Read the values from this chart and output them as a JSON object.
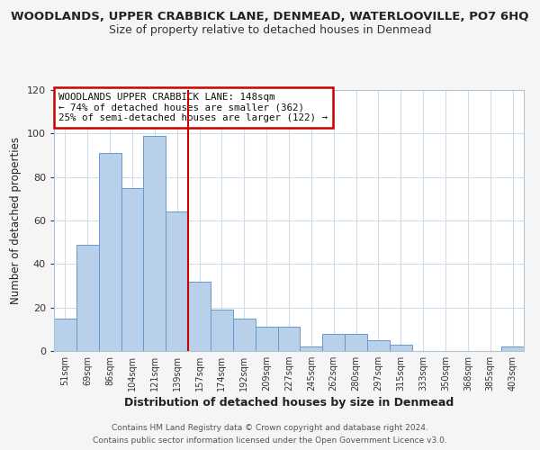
{
  "title": "WOODLANDS, UPPER CRABBICK LANE, DENMEAD, WATERLOOVILLE, PO7 6HQ",
  "subtitle": "Size of property relative to detached houses in Denmead",
  "xlabel": "Distribution of detached houses by size in Denmead",
  "ylabel": "Number of detached properties",
  "bar_labels": [
    "51sqm",
    "69sqm",
    "86sqm",
    "104sqm",
    "121sqm",
    "139sqm",
    "157sqm",
    "174sqm",
    "192sqm",
    "209sqm",
    "227sqm",
    "245sqm",
    "262sqm",
    "280sqm",
    "297sqm",
    "315sqm",
    "333sqm",
    "350sqm",
    "368sqm",
    "385sqm",
    "403sqm"
  ],
  "bar_values": [
    15,
    49,
    91,
    75,
    99,
    64,
    32,
    19,
    15,
    11,
    11,
    2,
    8,
    8,
    5,
    3,
    0,
    0,
    0,
    0,
    2
  ],
  "bar_color": "#b8d0ea",
  "bar_edge_color": "#6699cc",
  "vline_x": 5.5,
  "vline_color": "#cc0000",
  "ylim": [
    0,
    120
  ],
  "yticks": [
    0,
    20,
    40,
    60,
    80,
    100,
    120
  ],
  "annotation_title": "WOODLANDS UPPER CRABBICK LANE: 148sqm",
  "annotation_line1": "← 74% of detached houses are smaller (362)",
  "annotation_line2": "25% of semi-detached houses are larger (122) →",
  "annotation_box_color": "#ffffff",
  "annotation_box_edge_color": "#cc0000",
  "footer_line1": "Contains HM Land Registry data © Crown copyright and database right 2024.",
  "footer_line2": "Contains public sector information licensed under the Open Government Licence v3.0.",
  "background_color": "#f5f5f5",
  "plot_background_color": "#ffffff",
  "grid_color": "#d0dcea"
}
